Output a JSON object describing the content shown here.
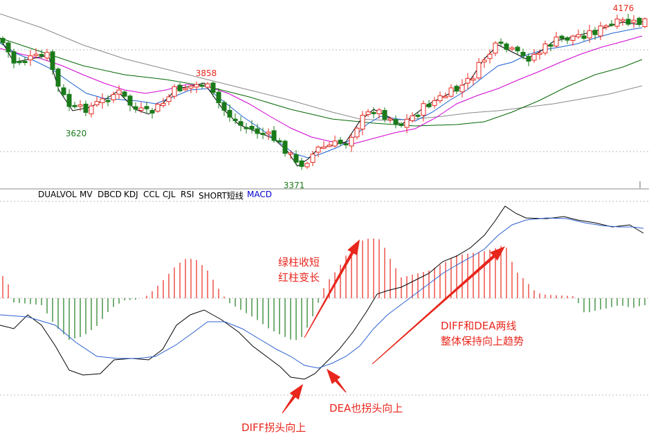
{
  "chart_data": {
    "type": "candlestick",
    "upper_panel": {
      "price_labels": [
        {
          "text": "3620",
          "kind": "low"
        },
        {
          "text": "3858",
          "kind": "high"
        },
        {
          "text": "3371",
          "kind": "low"
        },
        {
          "text": "4176",
          "kind": "high"
        }
      ]
    },
    "indicator_tabs": [
      "DUALVOL",
      "MV",
      "DBCD",
      "KDJ",
      "CCL",
      "CJL",
      "RSI",
      "SHORT短线",
      "MACD"
    ],
    "active_tab": "MACD",
    "annotations": [
      {
        "id": "bars",
        "lines": [
          "绿柱收短",
          "红柱变长"
        ]
      },
      {
        "id": "trend",
        "lines": [
          "DIFF和DEA两线",
          "整体保持向上趋势"
        ]
      },
      {
        "id": "dea",
        "lines": [
          "DEA也拐头向上"
        ]
      },
      {
        "id": "diff",
        "lines": [
          "DIFF拐头向上"
        ]
      }
    ],
    "colors": {
      "up": "#e8261c",
      "down": "#1a7a1a",
      "ma5": "#000000",
      "ma10": "#1a5fd0",
      "ma20": "#d000d0",
      "ma60": "#006600",
      "ma120": "#888888",
      "diff": "#000000",
      "dea": "#2a5fcf",
      "annotation": "#e8261c"
    }
  }
}
